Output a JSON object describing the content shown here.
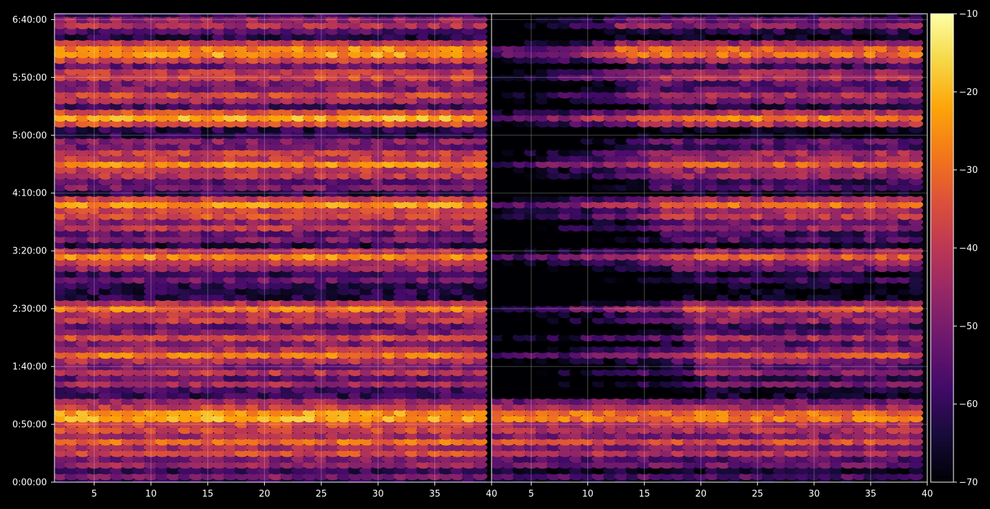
{
  "chart_data": [
    {
      "type": "heatmap",
      "title": "",
      "xlabel": "",
      "ylabel": "",
      "x_range": [
        1.5,
        40
      ],
      "x_ticks": [
        5,
        10,
        15,
        20,
        25,
        30,
        35,
        40
      ],
      "x_tick_labels": [
        "5",
        "10",
        "15",
        "20",
        "25",
        "30",
        "35",
        "40"
      ],
      "y_range_seconds": [
        0,
        24300
      ],
      "y_ticks_seconds": [
        0,
        3000,
        6000,
        9000,
        12000,
        15000,
        18000,
        21000,
        24000
      ],
      "y_tick_labels": [
        "0:00:00",
        "0:50:00",
        "1:40:00",
        "2:30:00",
        "3:20:00",
        "4:10:00",
        "5:00:00",
        "5:50:00",
        "6:40:00"
      ],
      "grid": true,
      "description_of_values": "Bright horizontal bands (value near -20 to -15) at approx 0:55, 0:50, 0:40, 1:45, 2:30, 3:10, 4:00, 4:35, 5:20, 6:05, 6:15; panel 1 generally brighter than panel 2",
      "bands": [
        {
          "t": 24000,
          "v": -46
        },
        {
          "t": 23700,
          "v": -42
        },
        {
          "t": 22500,
          "v": -26
        },
        {
          "t": 22200,
          "v": -24
        },
        {
          "t": 21300,
          "v": -40
        },
        {
          "t": 21000,
          "v": -36
        },
        {
          "t": 20100,
          "v": -36
        },
        {
          "t": 19800,
          "v": -44
        },
        {
          "t": 18900,
          "v": -22
        },
        {
          "t": 17700,
          "v": -48
        },
        {
          "t": 17100,
          "v": -38
        },
        {
          "t": 16500,
          "v": -26
        },
        {
          "t": 15900,
          "v": -40
        },
        {
          "t": 15300,
          "v": -50
        },
        {
          "t": 14400,
          "v": -24
        },
        {
          "t": 13800,
          "v": -34
        },
        {
          "t": 13200,
          "v": -40
        },
        {
          "t": 12600,
          "v": -50
        },
        {
          "t": 11700,
          "v": -26
        },
        {
          "t": 11100,
          "v": -46
        },
        {
          "t": 10500,
          "v": -52
        },
        {
          "t": 9000,
          "v": -28
        },
        {
          "t": 8400,
          "v": -40
        },
        {
          "t": 7500,
          "v": -36
        },
        {
          "t": 6600,
          "v": -28
        },
        {
          "t": 6000,
          "v": -50
        },
        {
          "t": 5700,
          "v": -40
        },
        {
          "t": 5100,
          "v": -44
        },
        {
          "t": 4200,
          "v": -46
        },
        {
          "t": 3600,
          "v": -24
        },
        {
          "t": 3300,
          "v": -22
        },
        {
          "t": 2700,
          "v": -36
        },
        {
          "t": 2100,
          "v": -30
        },
        {
          "t": 1500,
          "v": -36
        },
        {
          "t": 900,
          "v": -46
        },
        {
          "t": 300,
          "v": -50
        }
      ]
    },
    {
      "type": "heatmap",
      "title": "",
      "xlabel": "",
      "ylabel": "",
      "x_range": [
        1.5,
        40
      ],
      "x_ticks": [
        5,
        10,
        15,
        20,
        25,
        30,
        35,
        40
      ],
      "x_tick_labels": [
        "5",
        "10",
        "15",
        "20",
        "25",
        "30",
        "35",
        "40"
      ],
      "y_range_seconds": [
        0,
        24300
      ],
      "grid": true,
      "dark_region": {
        "x_end_at_top": 12,
        "x_end_at_bottom": 22
      }
    }
  ],
  "colorbar": {
    "colormap": "inferno",
    "min": -70,
    "max": -10,
    "ticks": [
      -10,
      -20,
      -30,
      -40,
      -50,
      -60,
      -70
    ],
    "tick_labels": [
      "−10",
      "−20",
      "−30",
      "−40",
      "−50",
      "−60",
      "−70"
    ]
  }
}
